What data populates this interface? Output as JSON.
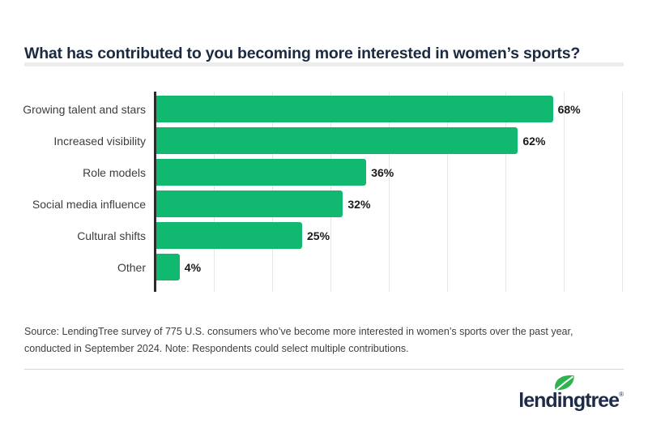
{
  "header": {
    "title": "What has contributed to you becoming more interested in women’s sports?"
  },
  "chart_data": {
    "type": "bar",
    "orientation": "horizontal",
    "title": "What has contributed to you becoming more interested in women’s sports?",
    "categories": [
      "Growing talent and stars",
      "Increased visibility",
      "Role models",
      "Social media influence",
      "Cultural shifts",
      "Other"
    ],
    "values": [
      68,
      62,
      36,
      32,
      25,
      4
    ],
    "value_suffix": "%",
    "xlabel": "",
    "ylabel": "",
    "xlim": [
      0,
      80
    ],
    "gridline_step_pct": 10,
    "grid": "vertical-light",
    "legend": "none"
  },
  "footer": {
    "source_note": "Source: LendingTree survey of 775 U.S. consumers who’ve become more interested in women’s sports over the past year, conducted in September 2024. Note: Respondents could select multiple contributions.",
    "logo_text": "lendingtree",
    "logo_registered": "®"
  },
  "icons": {
    "leaf": "leaf-icon"
  },
  "colors": {
    "bar_green": "#10b96f",
    "axis": "#2b2b2b",
    "gridline": "#e7e7e7",
    "title_navy": "#1b2a41",
    "logo_navy": "#1d2b49",
    "leaf_green": "#2eb34f",
    "divider_light": "#ececec",
    "divider_gray": "#d6d6d6"
  }
}
